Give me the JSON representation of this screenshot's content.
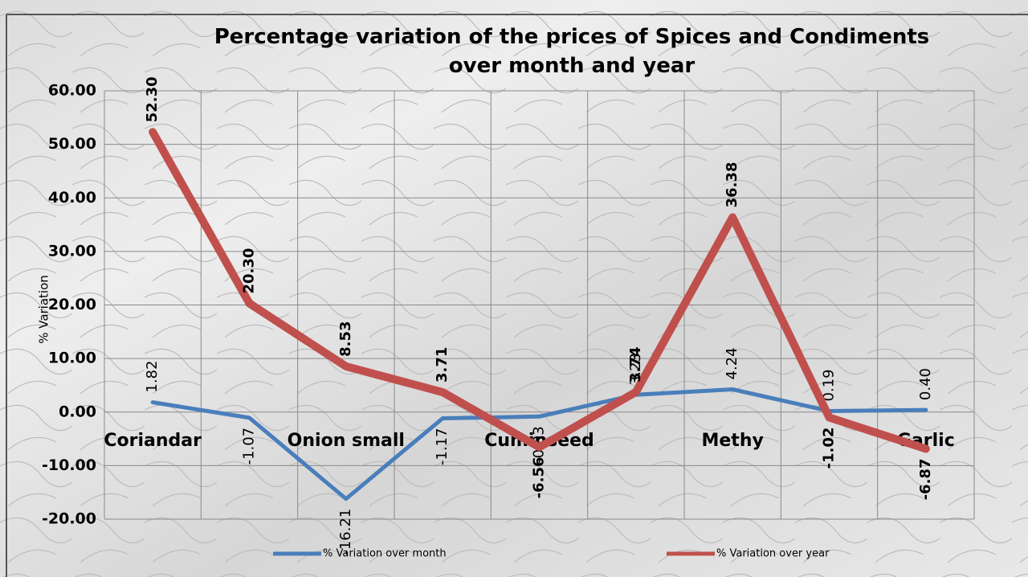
{
  "chart_data": {
    "type": "line",
    "title": "Percentage variation of the prices of Spices and Condiments over month and year",
    "y_label": "% Variation",
    "categories": [
      "Coriandar",
      null,
      "Onion small",
      null,
      "Cuminseed",
      null,
      "Methy",
      null,
      "Garlic"
    ],
    "series": [
      {
        "name": "% Variation over month",
        "color": "#4a7ebb",
        "values": [
          1.82,
          -1.07,
          -16.21,
          -1.17,
          -0.83,
          3.23,
          4.24,
          0.19,
          0.4
        ],
        "value_labels": [
          "1.82",
          "-1.07",
          "-16.21",
          "-1.17",
          "-0.83",
          "3.23",
          "4.24",
          "0.19",
          "0.40"
        ]
      },
      {
        "name": "% Variation over year",
        "color": "#c0504d",
        "values": [
          52.3,
          20.3,
          8.53,
          3.71,
          -6.56,
          3.74,
          36.38,
          -1.02,
          -6.87
        ],
        "value_labels": [
          "52.30",
          "20.30",
          "8.53",
          "3.71",
          "-6.56",
          "3.74",
          "36.38",
          "-1.02",
          "-6.87"
        ]
      }
    ],
    "ylim": [
      -20,
      60
    ],
    "yticks": [
      {
        "value": -20,
        "label": "-20.00"
      },
      {
        "value": -10,
        "label": "-10.00"
      },
      {
        "value": 0,
        "label": "0.00"
      },
      {
        "value": 10,
        "label": "10.00"
      },
      {
        "value": 20,
        "label": "20.00"
      },
      {
        "value": 30,
        "label": "30.00"
      },
      {
        "value": 40,
        "label": "40.00"
      },
      {
        "value": 50,
        "label": "50.00"
      },
      {
        "value": 60,
        "label": "60.00"
      }
    ],
    "grid": true,
    "legend": "bottom"
  }
}
